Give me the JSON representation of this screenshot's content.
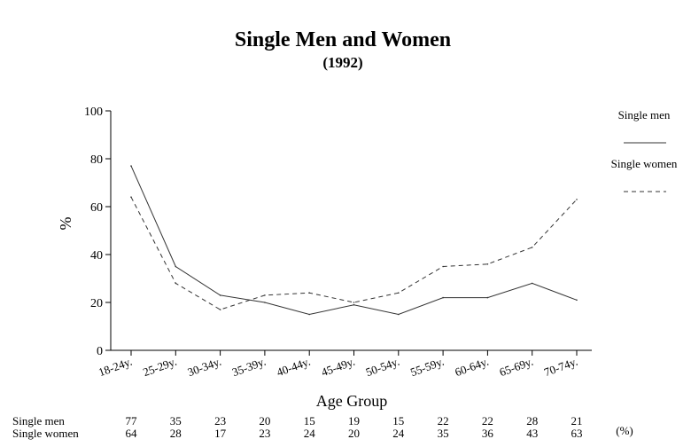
{
  "chart_data": {
    "type": "line",
    "title": "Single Men and Women",
    "subtitle": "(1992)",
    "xlabel": "Age Group",
    "ylabel": "%",
    "ylim": [
      0,
      100
    ],
    "yticks": [
      0,
      20,
      40,
      60,
      80,
      100
    ],
    "grid": false,
    "legend_position": "top-right",
    "categories": [
      "18-24y.",
      "25-29y.",
      "30-34y.",
      "35-39y.",
      "40-44y.",
      "45-49y.",
      "50-54y.",
      "55-59y.",
      "60-64y.",
      "65-69y.",
      "70-74y."
    ],
    "series": [
      {
        "name": "Single men",
        "values": [
          77,
          35,
          23,
          20,
          15,
          19,
          15,
          22,
          22,
          28,
          21
        ],
        "style": "solid",
        "color": "#333333"
      },
      {
        "name": "Single women",
        "values": [
          64,
          28,
          17,
          23,
          24,
          20,
          24,
          35,
          36,
          43,
          63
        ],
        "style": "dashed",
        "color": "#333333"
      }
    ],
    "table": {
      "unit": "(%)"
    }
  }
}
